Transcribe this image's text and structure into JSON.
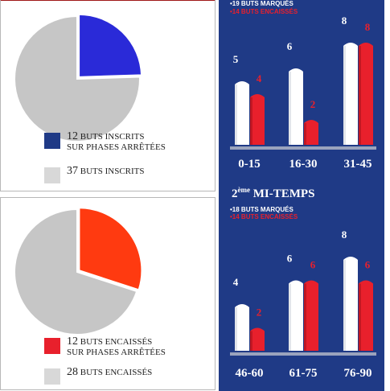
{
  "colors": {
    "navy": "#1f3a86",
    "blue_slice": "#2a2ad8",
    "red_slice": "#ff3a10",
    "grey_slice": "#c6c6c6",
    "white_bar": "#ffffff",
    "red_bar": "#e8202c",
    "legend_blue": "#1f3a86",
    "legend_red": "#e8202c",
    "legend_grey": "#d8d8d8"
  },
  "top_panel": {
    "legend": [
      {
        "num": "12",
        "text": "buts inscrits",
        "sub": "sur phases arrêtées"
      },
      {
        "num": "37",
        "text": "buts inscrits",
        "sub": ""
      }
    ]
  },
  "bottom_panel": {
    "legend": [
      {
        "num": "12",
        "text": "buts encaissés",
        "sub": "sur phases arrêtées"
      },
      {
        "num": "28",
        "text": "buts encaissés",
        "sub": ""
      }
    ]
  },
  "right_panel": {
    "first_half": {
      "marques": "•19 BUTS MARQUÉS",
      "encaisses": "•14 BUTS ENCAISSÉS"
    },
    "second_half": {
      "title_num": "2",
      "title_sup": "ème",
      "title_rest": " MI-TEMPS",
      "marques": "•18 BUTS MARQUÉS",
      "encaisses": "•14 BUTS ENCAISSÉS"
    }
  },
  "chart_data": [
    {
      "type": "pie",
      "slices": [
        {
          "label": "12 buts inscrits sur phases arrêtées",
          "value": 12,
          "color": "#2a2ad8"
        },
        {
          "label": "37 buts inscrits",
          "value": 37,
          "color": "#c6c6c6"
        }
      ]
    },
    {
      "type": "pie",
      "slices": [
        {
          "label": "12 buts encaissés sur phases arrêtées",
          "value": 12,
          "color": "#ff3a10"
        },
        {
          "label": "28 buts encaissés",
          "value": 28,
          "color": "#c6c6c6"
        }
      ]
    },
    {
      "type": "bar",
      "categories": [
        "0-15",
        "16-30",
        "31-45"
      ],
      "series": [
        {
          "name": "19 BUTS MARQUÉS",
          "values": [
            5,
            6,
            8
          ],
          "color": "#ffffff"
        },
        {
          "name": "14 BUTS ENCAISSÉS",
          "values": [
            4,
            2,
            8
          ],
          "color": "#e8202c"
        }
      ],
      "ylim": [
        0,
        8
      ]
    },
    {
      "type": "bar",
      "title": "2ème MI-TEMPS",
      "categories": [
        "46-60",
        "61-75",
        "76-90"
      ],
      "series": [
        {
          "name": "18 BUTS MARQUÉS",
          "values": [
            4,
            6,
            8
          ],
          "color": "#ffffff"
        },
        {
          "name": "14 BUTS ENCAISSÉS",
          "values": [
            2,
            6,
            6
          ],
          "color": "#e8202c"
        }
      ],
      "ylim": [
        0,
        8
      ]
    }
  ]
}
